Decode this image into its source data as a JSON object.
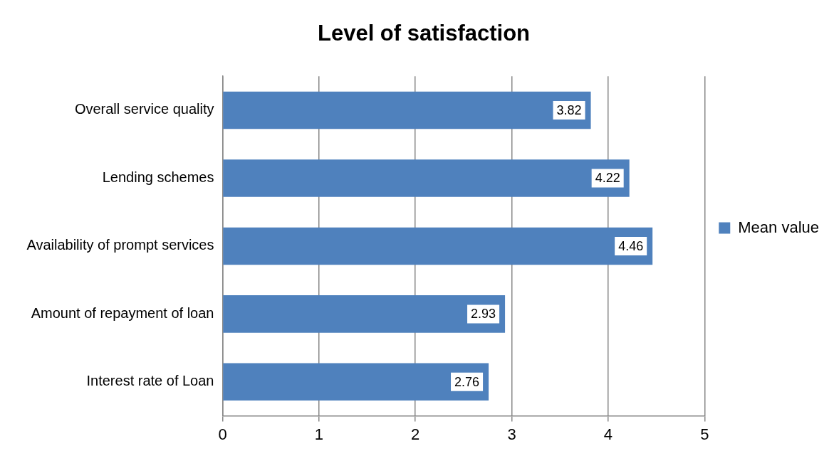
{
  "chart_data": {
    "type": "bar",
    "orientation": "horizontal",
    "title": "Level of satisfaction",
    "categories": [
      "Overall service quality",
      "Lending schemes",
      "Availability of prompt services",
      "Amount of repayment of loan",
      "Interest rate of Loan"
    ],
    "series": [
      {
        "name": "Mean value",
        "color": "#4f81bd",
        "values": [
          3.82,
          4.22,
          4.46,
          2.93,
          2.76
        ]
      }
    ],
    "xlim": [
      0,
      5
    ],
    "xticks": [
      0,
      1,
      2,
      3,
      4,
      5
    ],
    "grid": "x",
    "legend": "right",
    "data_labels": true
  }
}
